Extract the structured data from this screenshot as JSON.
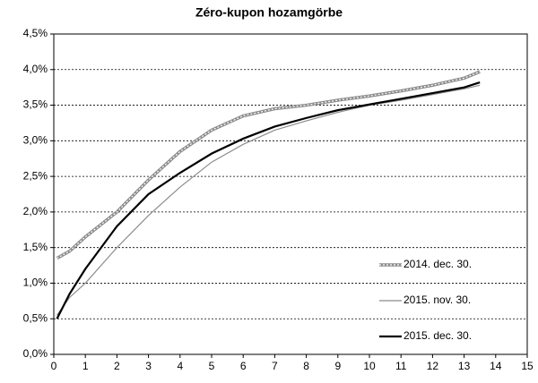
{
  "chart_data": {
    "type": "line",
    "title": "Zéro-kupon hozamgörbe",
    "x": [
      0.1,
      0.5,
      1,
      2,
      3,
      4,
      5,
      6,
      7,
      8,
      9,
      10,
      11,
      12,
      13,
      13.5
    ],
    "series": [
      {
        "name": "2014. dec. 30.",
        "color": "#8c8c8c",
        "width": 3.5,
        "values": [
          1.35,
          1.45,
          1.65,
          2.0,
          2.45,
          2.85,
          3.15,
          3.35,
          3.45,
          3.5,
          3.57,
          3.63,
          3.7,
          3.78,
          3.88,
          3.97
        ]
      },
      {
        "name": "2015. nov. 30.",
        "color": "#8c8c8c",
        "width": 1.2,
        "values": [
          0.55,
          0.8,
          1.0,
          1.5,
          1.95,
          2.35,
          2.7,
          2.95,
          3.15,
          3.28,
          3.4,
          3.5,
          3.57,
          3.65,
          3.73,
          3.78
        ]
      },
      {
        "name": "2015. dec. 30.",
        "color": "#000000",
        "width": 2.2,
        "values": [
          0.5,
          0.85,
          1.2,
          1.8,
          2.25,
          2.55,
          2.82,
          3.03,
          3.2,
          3.32,
          3.43,
          3.51,
          3.59,
          3.67,
          3.75,
          3.82
        ]
      }
    ],
    "xlim": [
      0,
      15
    ],
    "xticks": [
      0,
      1,
      2,
      3,
      4,
      5,
      6,
      7,
      8,
      9,
      10,
      11,
      12,
      13,
      14,
      15
    ],
    "ylim": [
      0,
      4.5
    ],
    "yticks": [
      {
        "value": 0,
        "label": "0,0%"
      },
      {
        "value": 0.5,
        "label": "0,5%"
      },
      {
        "value": 1,
        "label": "1,0%"
      },
      {
        "value": 1.5,
        "label": "1,5%"
      },
      {
        "value": 2,
        "label": "2,0%"
      },
      {
        "value": 2.5,
        "label": "2,5%"
      },
      {
        "value": 3,
        "label": "3,0%"
      },
      {
        "value": 3.5,
        "label": "3,5%"
      },
      {
        "value": 4,
        "label": "4,0%"
      },
      {
        "value": 4.5,
        "label": "4,5%"
      }
    ],
    "grid": true,
    "legend": "lower right"
  }
}
